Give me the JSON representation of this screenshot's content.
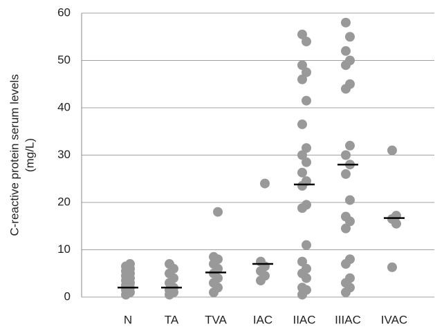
{
  "chart_data": {
    "type": "strip",
    "ylabel": [
      "C-reactive protein serum levels",
      "(mg/L)"
    ],
    "categories": [
      "N",
      "TA",
      "TVA",
      "IAC",
      "IIAC",
      "IIIAC",
      "IVAC"
    ],
    "values": [
      [
        0.5,
        1,
        1.5,
        2,
        2.5,
        3,
        3.5,
        4,
        4.5,
        5,
        5.5,
        6,
        6.5,
        7
      ],
      [
        0.5,
        1,
        1.5,
        2,
        3,
        4,
        5,
        6,
        7
      ],
      [
        1,
        2,
        3,
        4,
        5,
        6,
        7,
        8,
        8.5,
        18
      ],
      [
        3.5,
        4.5,
        5.5,
        6.5,
        7.5,
        24
      ],
      [
        0.5,
        1.5,
        2,
        4,
        5,
        6,
        7.5,
        11,
        18.8,
        19.5,
        23.5,
        24.5,
        26.3,
        28.5,
        30,
        31.5,
        36.5,
        41.5,
        46,
        47.5,
        49,
        54,
        55.5
      ],
      [
        1,
        2,
        3,
        4,
        7,
        8,
        14.5,
        16,
        17,
        20.5,
        26,
        28,
        30,
        32,
        44,
        45,
        49,
        50,
        52,
        55,
        58
      ],
      [
        6.3,
        15.5,
        16.5,
        17.2,
        31
      ]
    ],
    "medians": [
      2,
      2,
      5.2,
      7,
      23.8,
      28,
      16.7
    ],
    "color": "#999999",
    "median_color": "#000000",
    "ylim": [
      0,
      60
    ],
    "yticks": [
      0,
      10,
      20,
      30,
      40,
      50,
      60
    ],
    "grid": true
  }
}
